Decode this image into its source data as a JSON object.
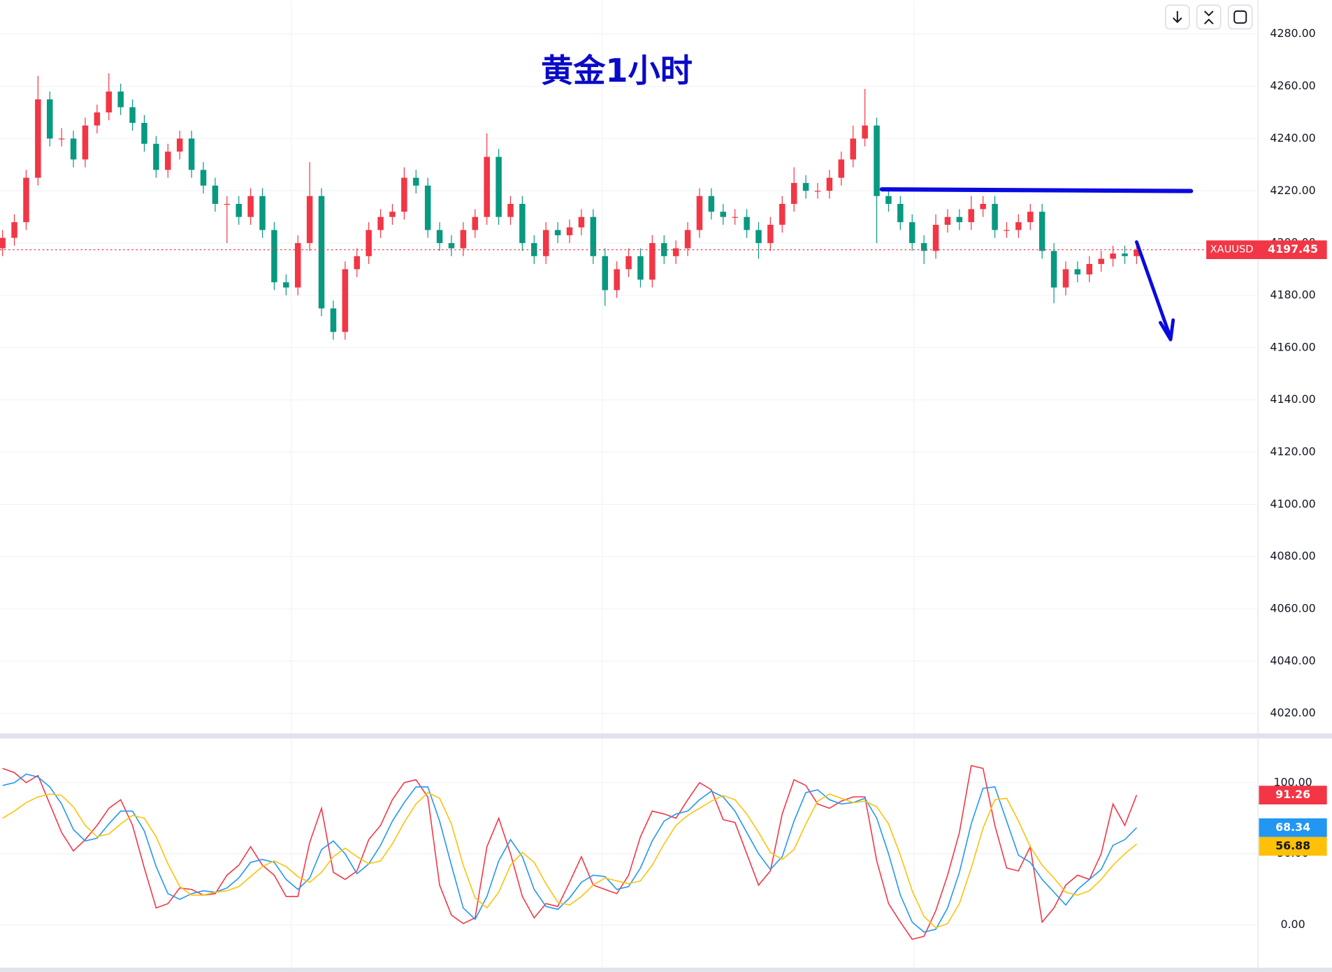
{
  "chart_data": [
    {
      "type": "candlestick",
      "title": "黄金1小时",
      "symbol": "XAUUSD",
      "up_color": "#f23645",
      "down_color": "#089981",
      "grid": true,
      "ylim": [
        4013,
        4293
      ],
      "yticks": [
        {
          "value": 4020,
          "label": "4020.00"
        },
        {
          "value": 4040,
          "label": "4040.00"
        },
        {
          "value": 4060,
          "label": "4060.00"
        },
        {
          "value": 4080,
          "label": "4080.00"
        },
        {
          "value": 4100,
          "label": "4100.00"
        },
        {
          "value": 4120,
          "label": "4120.00"
        },
        {
          "value": 4140,
          "label": "4140.00"
        },
        {
          "value": 4160,
          "label": "4160.00"
        },
        {
          "value": 4180,
          "label": "4180.00"
        },
        {
          "value": 4200,
          "label": "4200.00"
        },
        {
          "value": 4220,
          "label": "4220.00"
        },
        {
          "value": 4240,
          "label": "4240.00"
        },
        {
          "value": 4260,
          "label": "4260.00"
        },
        {
          "value": 4280,
          "label": "4280.00"
        }
      ],
      "open": [
        4198,
        4202,
        4208,
        4225,
        4255,
        4240,
        4240,
        4232,
        4245,
        4250,
        4258,
        4252,
        4246,
        4238,
        4228,
        4235,
        4240,
        4228,
        4222,
        4215,
        4215,
        4210,
        4218,
        4205,
        4185,
        4183,
        4200,
        4218,
        4175,
        4166,
        4190,
        4195,
        4205,
        4210,
        4212,
        4225,
        4222,
        4205,
        4200,
        4198,
        4205,
        4210,
        4233,
        4210,
        4215,
        4200,
        4195,
        4205,
        4203,
        4206,
        4210,
        4195,
        4182,
        4190,
        4195,
        4186,
        4200,
        4195,
        4198,
        4205,
        4218,
        4212,
        4210,
        4210,
        4205,
        4200,
        4207,
        4215,
        4223,
        4220,
        4220,
        4225,
        4232,
        4240,
        4245,
        4218,
        4215,
        4208,
        4200,
        4197,
        4207,
        4210,
        4208,
        4213,
        4215,
        4205,
        4205,
        4208,
        4212,
        4197,
        4183,
        4190,
        4188,
        4192,
        4194,
        4196,
        4195
      ],
      "high": [
        4205,
        4211,
        4228,
        4264,
        4258,
        4244,
        4243,
        4248,
        4253,
        4265,
        4261,
        4255,
        4249,
        4241,
        4238,
        4243,
        4243,
        4231,
        4225,
        4218,
        4218,
        4221,
        4221,
        4208,
        4188,
        4203,
        4231,
        4221,
        4178,
        4193,
        4198,
        4208,
        4213,
        4215,
        4229,
        4228,
        4225,
        4208,
        4203,
        4208,
        4213,
        4242,
        4236,
        4218,
        4218,
        4203,
        4208,
        4208,
        4209,
        4213,
        4213,
        4198,
        4193,
        4198,
        4198,
        4203,
        4203,
        4201,
        4208,
        4221,
        4221,
        4215,
        4213,
        4213,
        4208,
        4210,
        4218,
        4229,
        4226,
        4223,
        4228,
        4235,
        4245,
        4259,
        4248,
        4221,
        4218,
        4211,
        4203,
        4211,
        4213,
        4213,
        4218,
        4218,
        4218,
        4208,
        4211,
        4215,
        4215,
        4200,
        4193,
        4193,
        4195,
        4197,
        4199,
        4199,
        4199
      ],
      "low": [
        4195,
        4199,
        4205,
        4222,
        4237,
        4237,
        4229,
        4229,
        4242,
        4247,
        4249,
        4243,
        4235,
        4225,
        4225,
        4232,
        4225,
        4219,
        4212,
        4200,
        4207,
        4207,
        4202,
        4182,
        4180,
        4180,
        4197,
        4172,
        4163,
        4163,
        4187,
        4192,
        4202,
        4207,
        4209,
        4219,
        4202,
        4197,
        4195,
        4195,
        4202,
        4207,
        4207,
        4207,
        4197,
        4192,
        4192,
        4200,
        4200,
        4203,
        4192,
        4176,
        4179,
        4187,
        4183,
        4183,
        4192,
        4192,
        4195,
        4202,
        4209,
        4207,
        4207,
        4202,
        4194,
        4197,
        4204,
        4212,
        4217,
        4217,
        4217,
        4222,
        4229,
        4237,
        4200,
        4212,
        4205,
        4197,
        4192,
        4194,
        4204,
        4205,
        4205,
        4210,
        4202,
        4202,
        4202,
        4205,
        4194,
        4177,
        4180,
        4185,
        4185,
        4189,
        4191,
        4192,
        4192
      ],
      "close": [
        4202,
        4208,
        4225,
        4255,
        4240,
        4240,
        4232,
        4245,
        4250,
        4258,
        4252,
        4246,
        4238,
        4228,
        4235,
        4240,
        4228,
        4222,
        4215,
        4215,
        4210,
        4218,
        4205,
        4185,
        4183,
        4200,
        4218,
        4175,
        4166,
        4190,
        4195,
        4205,
        4210,
        4212,
        4225,
        4222,
        4205,
        4200,
        4198,
        4205,
        4210,
        4233,
        4210,
        4215,
        4200,
        4195,
        4205,
        4203,
        4206,
        4210,
        4195,
        4182,
        4190,
        4195,
        4186,
        4200,
        4195,
        4198,
        4205,
        4218,
        4212,
        4210,
        4210,
        4205,
        4200,
        4207,
        4215,
        4223,
        4220,
        4220,
        4225,
        4232,
        4240,
        4245,
        4218,
        4215,
        4208,
        4200,
        4197,
        4207,
        4210,
        4208,
        4213,
        4215,
        4205,
        4205,
        4208,
        4212,
        4197,
        4183,
        4190,
        4188,
        4192,
        4194,
        4196,
        4195,
        4197.45
      ]
    },
    {
      "type": "line",
      "grid": true,
      "ylim": [
        -30,
        131
      ],
      "yticks": [
        {
          "value": 0,
          "label": "0.00"
        },
        {
          "value": 50,
          "label": "50.00"
        },
        {
          "value": 100,
          "label": "100.00"
        }
      ],
      "series": [
        {
          "color": "#f23645",
          "values": [
            110,
            107,
            100,
            105,
            85,
            65,
            52,
            60,
            70,
            82,
            88,
            70,
            40,
            12,
            15,
            26,
            25,
            21,
            22,
            35,
            42,
            55,
            42,
            35,
            20,
            20,
            58,
            82,
            37,
            32,
            38,
            60,
            70,
            88,
            100,
            102,
            90,
            28,
            7,
            1,
            5,
            55,
            75,
            50,
            20,
            5,
            15,
            13,
            30,
            48,
            28,
            25,
            22,
            35,
            62,
            80,
            78,
            75,
            88,
            100,
            95,
            74,
            72,
            50,
            28,
            38,
            78,
            102,
            98,
            85,
            82,
            87,
            90,
            90,
            45,
            15,
            2,
            -10,
            -8,
            10,
            35,
            65,
            112,
            110,
            70,
            40,
            38,
            55,
            2,
            12,
            28,
            35,
            32,
            50,
            85,
            70,
            91.26
          ]
        },
        {
          "color": "#2196f3",
          "values": [
            98,
            100,
            106,
            104,
            97,
            85,
            67,
            59,
            61,
            71,
            80,
            80,
            66,
            41,
            22,
            18,
            22,
            24,
            23,
            26,
            33,
            44,
            46,
            44,
            32,
            25,
            33,
            53,
            59,
            50,
            36,
            43,
            56,
            73,
            86,
            97,
            97,
            73,
            42,
            12,
            4,
            20,
            45,
            60,
            48,
            25,
            13,
            11,
            19,
            30,
            35,
            34,
            25,
            27,
            40,
            59,
            73,
            78,
            80,
            88,
            94,
            90,
            80,
            65,
            50,
            39,
            48,
            73,
            93,
            95,
            88,
            85,
            86,
            89,
            75,
            50,
            21,
            2,
            -5,
            -3,
            12,
            37,
            71,
            96,
            97,
            73,
            49,
            44,
            32,
            23,
            14,
            25,
            32,
            39,
            56,
            60,
            68.34
          ]
        },
        {
          "color": "#ffc107",
          "values": [
            75,
            80,
            86,
            90,
            92,
            91,
            83,
            70,
            62,
            64,
            71,
            77,
            75,
            62,
            43,
            27,
            21,
            21,
            23,
            24,
            27,
            34,
            41,
            45,
            41,
            34,
            30,
            37,
            48,
            54,
            48,
            43,
            45,
            57,
            72,
            85,
            93,
            89,
            71,
            42,
            19,
            12,
            23,
            42,
            51,
            44,
            29,
            16,
            14,
            20,
            28,
            33,
            31,
            29,
            31,
            42,
            57,
            70,
            77,
            82,
            87,
            91,
            88,
            78,
            65,
            51,
            46,
            53,
            71,
            87,
            92,
            89,
            86,
            87,
            83,
            71,
            49,
            24,
            6,
            -2,
            1,
            15,
            40,
            68,
            88,
            89,
            73,
            55,
            42,
            33,
            23,
            21,
            24,
            32,
            42,
            50,
            56.88
          ]
        }
      ]
    }
  ]
}
